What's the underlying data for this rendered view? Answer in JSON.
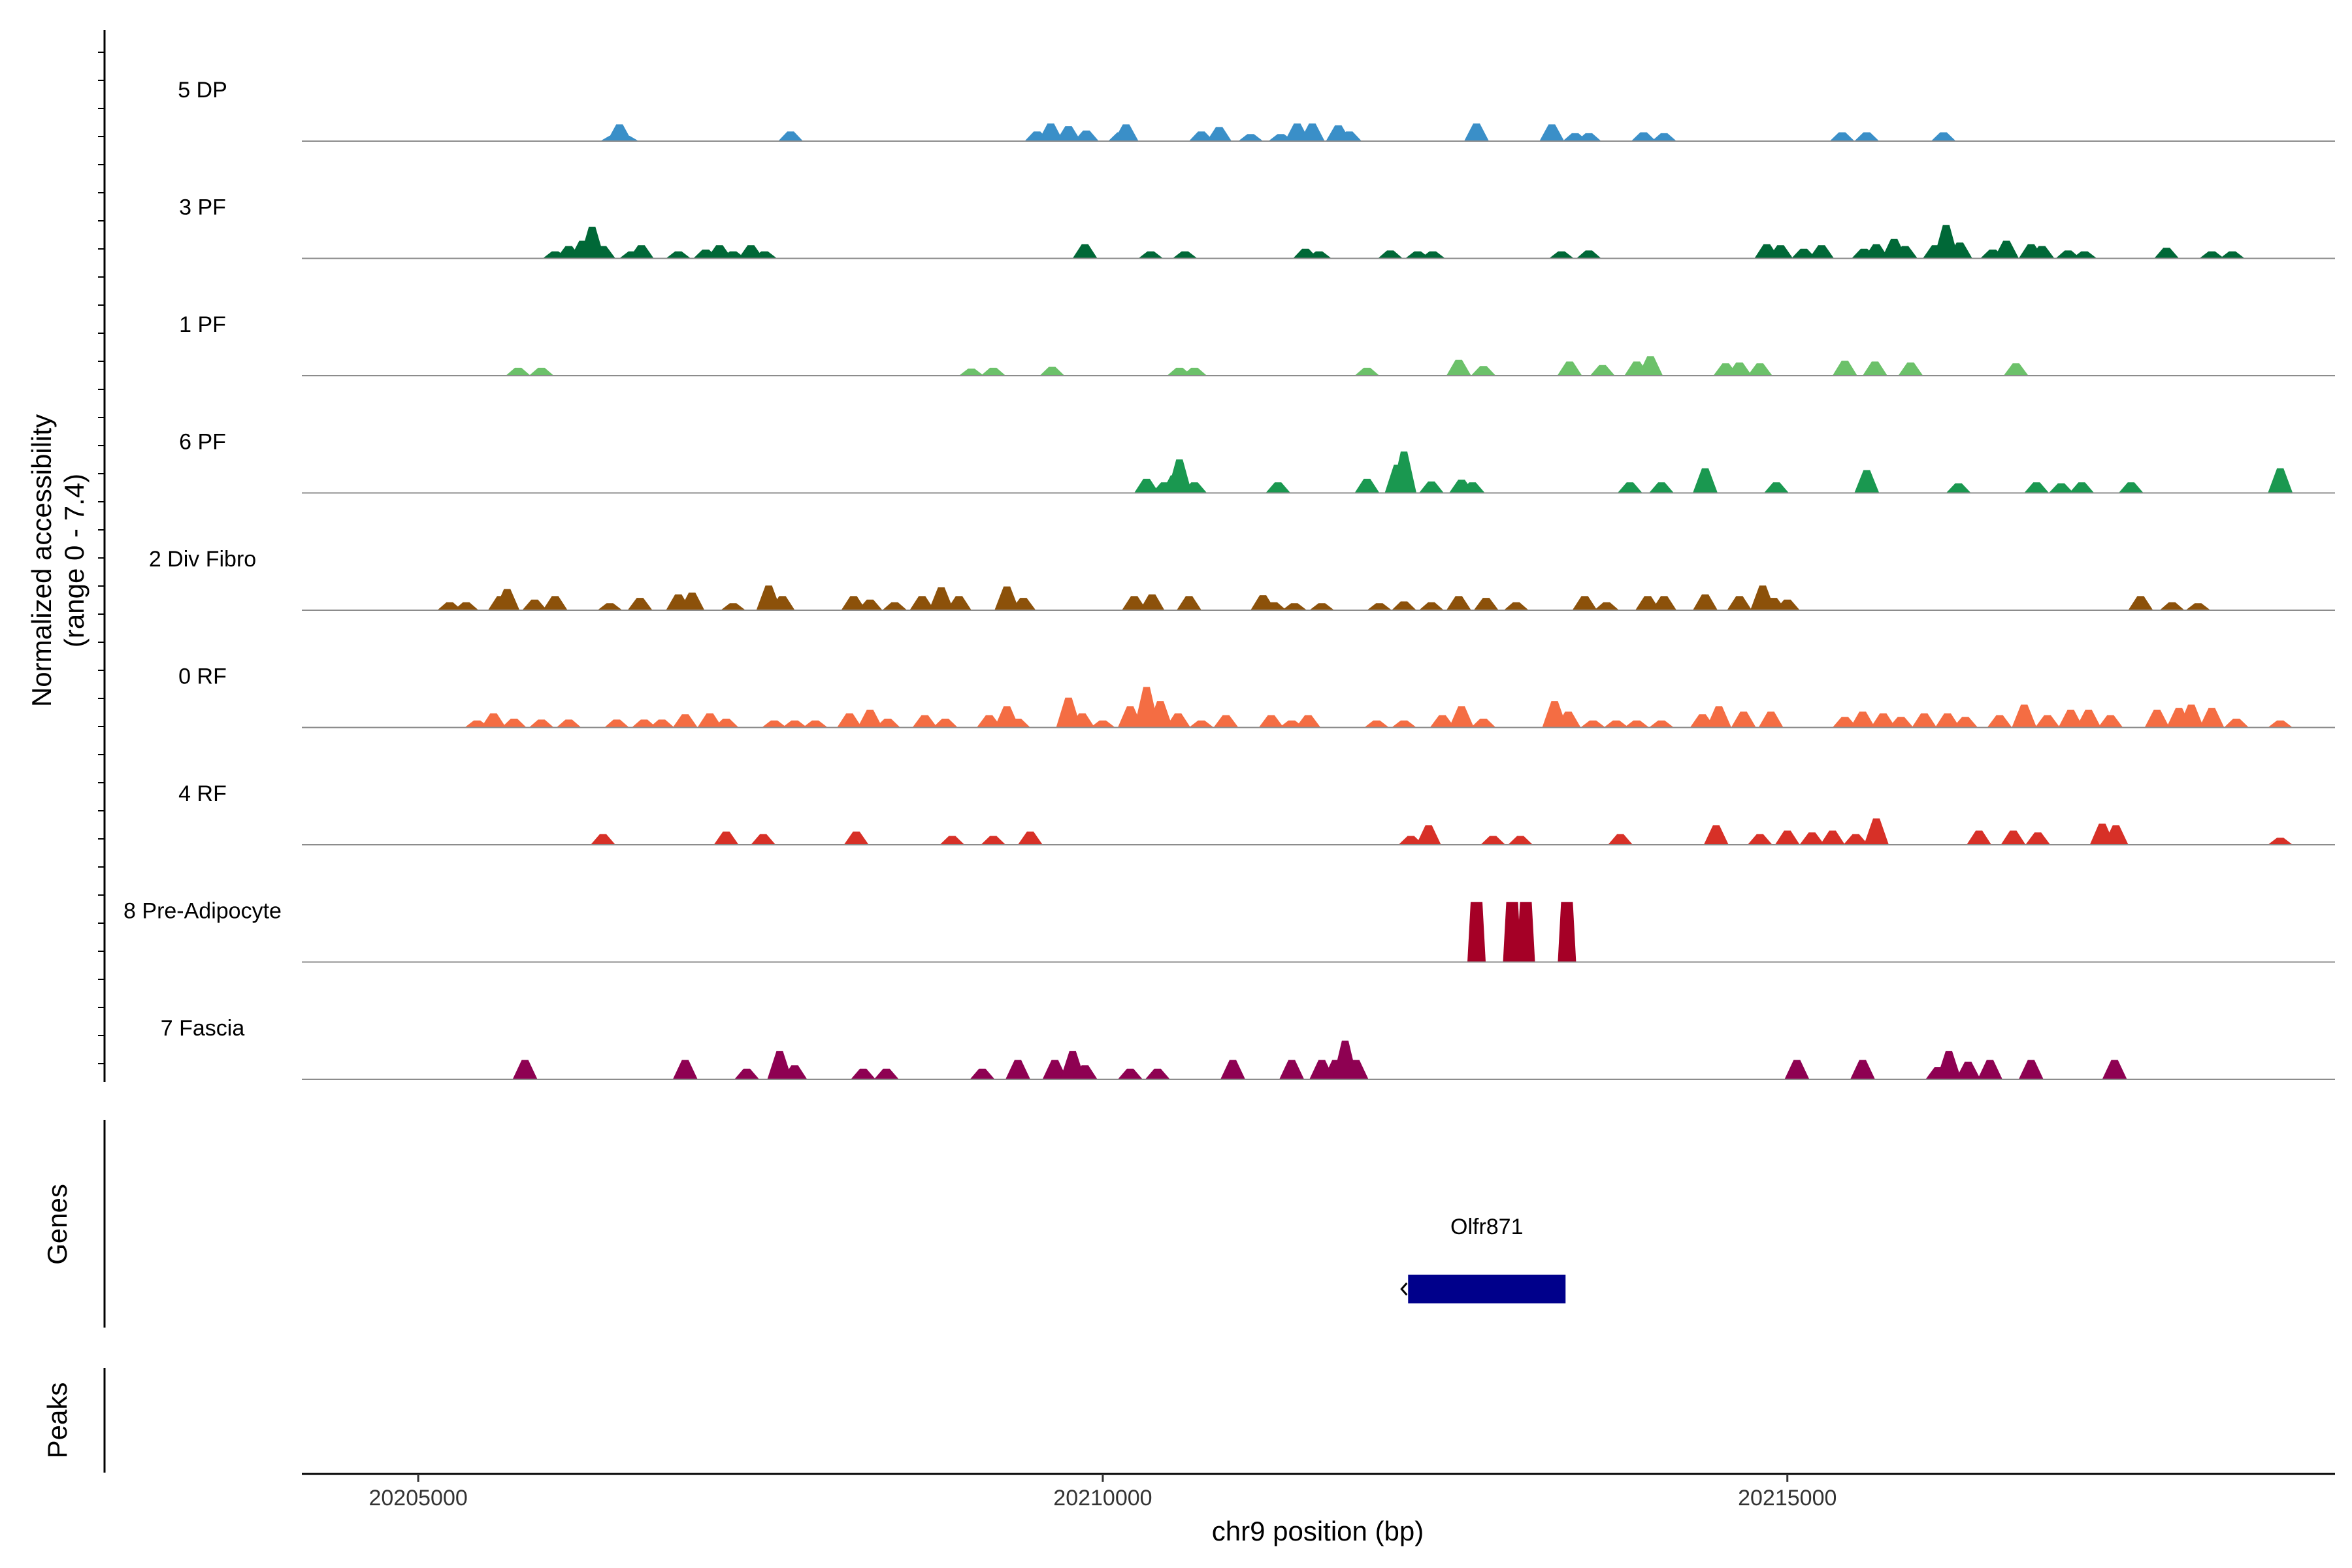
{
  "chart_data": {
    "type": "area",
    "title": "",
    "ylabel_lines": [
      "Normalized accessibility",
      "(range 0 - 7.4)"
    ],
    "y_range": [
      0,
      7.4
    ],
    "xlabel": "chr9 position (bp)",
    "x_range": [
      20204150,
      20219000
    ],
    "x_ticks": [
      20205000,
      20210000,
      20215000
    ],
    "x_tick_labels": [
      "20205000",
      "20210000",
      "20215000"
    ],
    "tracks": [
      {
        "name": "5 DP",
        "color": "#3a8fc8",
        "peaks": [
          [
            20206420,
            0.3
          ],
          [
            20206470,
            0.95
          ],
          [
            20206520,
            0.3
          ],
          [
            20207720,
            0.55
          ],
          [
            20209520,
            0.55
          ],
          [
            20209620,
            1.0
          ],
          [
            20209750,
            0.85
          ],
          [
            20209880,
            0.6
          ],
          [
            20210130,
            0.5
          ],
          [
            20210170,
            0.95
          ],
          [
            20210720,
            0.55
          ],
          [
            20210850,
            0.8
          ],
          [
            20211080,
            0.4
          ],
          [
            20211300,
            0.4
          ],
          [
            20211420,
            1.0
          ],
          [
            20211530,
            1.0
          ],
          [
            20211720,
            0.9
          ],
          [
            20211800,
            0.55
          ],
          [
            20212730,
            1.0
          ],
          [
            20213280,
            0.95
          ],
          [
            20213450,
            0.45
          ],
          [
            20213550,
            0.45
          ],
          [
            20213950,
            0.5
          ],
          [
            20214100,
            0.45
          ],
          [
            20215400,
            0.5
          ],
          [
            20215580,
            0.5
          ],
          [
            20216140,
            0.5
          ]
        ]
      },
      {
        "name": "3 PF",
        "color": "#006837",
        "peaks": [
          [
            20206000,
            0.4
          ],
          [
            20206100,
            0.7
          ],
          [
            20206200,
            1.0
          ],
          [
            20206270,
            1.8
          ],
          [
            20206350,
            0.7
          ],
          [
            20206560,
            0.4
          ],
          [
            20206630,
            0.75
          ],
          [
            20206900,
            0.4
          ],
          [
            20207100,
            0.5
          ],
          [
            20207200,
            0.75
          ],
          [
            20207300,
            0.4
          ],
          [
            20207430,
            0.75
          ],
          [
            20207530,
            0.4
          ],
          [
            20209870,
            0.8
          ],
          [
            20210350,
            0.4
          ],
          [
            20210600,
            0.4
          ],
          [
            20211480,
            0.55
          ],
          [
            20211580,
            0.4
          ],
          [
            20212100,
            0.45
          ],
          [
            20212300,
            0.4
          ],
          [
            20212410,
            0.4
          ],
          [
            20213350,
            0.4
          ],
          [
            20213550,
            0.45
          ],
          [
            20214850,
            0.8
          ],
          [
            20214950,
            0.75
          ],
          [
            20215120,
            0.55
          ],
          [
            20215250,
            0.75
          ],
          [
            20215560,
            0.55
          ],
          [
            20215650,
            0.8
          ],
          [
            20215780,
            1.1
          ],
          [
            20215860,
            0.7
          ],
          [
            20216080,
            0.75
          ],
          [
            20216160,
            1.9
          ],
          [
            20216260,
            0.9
          ],
          [
            20216500,
            0.5
          ],
          [
            20216600,
            1.0
          ],
          [
            20216780,
            0.8
          ],
          [
            20216860,
            0.7
          ],
          [
            20217050,
            0.45
          ],
          [
            20217170,
            0.4
          ],
          [
            20217770,
            0.6
          ],
          [
            20218100,
            0.4
          ],
          [
            20218250,
            0.4
          ]
        ]
      },
      {
        "name": "1 PF",
        "color": "#6cc16a",
        "peaks": [
          [
            20205730,
            0.45
          ],
          [
            20205900,
            0.45
          ],
          [
            20209040,
            0.4
          ],
          [
            20209200,
            0.45
          ],
          [
            20209630,
            0.5
          ],
          [
            20210560,
            0.45
          ],
          [
            20210670,
            0.45
          ],
          [
            20211930,
            0.45
          ],
          [
            20212600,
            0.9
          ],
          [
            20212780,
            0.55
          ],
          [
            20213410,
            0.8
          ],
          [
            20213650,
            0.6
          ],
          [
            20213900,
            0.8
          ],
          [
            20214000,
            1.1
          ],
          [
            20214550,
            0.7
          ],
          [
            20214650,
            0.75
          ],
          [
            20214800,
            0.7
          ],
          [
            20215420,
            0.85
          ],
          [
            20215640,
            0.8
          ],
          [
            20215900,
            0.75
          ],
          [
            20216670,
            0.7
          ]
        ]
      },
      {
        "name": "6 PF",
        "color": "#1a9850",
        "peaks": [
          [
            20210320,
            0.8
          ],
          [
            20210450,
            0.6
          ],
          [
            20210520,
            1.0
          ],
          [
            20210560,
            1.9
          ],
          [
            20210670,
            0.6
          ],
          [
            20211280,
            0.6
          ],
          [
            20211930,
            0.8
          ],
          [
            20212150,
            1.6
          ],
          [
            20212200,
            2.35
          ],
          [
            20212400,
            0.65
          ],
          [
            20212620,
            0.75
          ],
          [
            20212700,
            0.6
          ],
          [
            20213850,
            0.6
          ],
          [
            20214080,
            0.6
          ],
          [
            20214400,
            1.4
          ],
          [
            20214920,
            0.6
          ],
          [
            20215580,
            1.3
          ],
          [
            20216250,
            0.55
          ],
          [
            20216820,
            0.6
          ],
          [
            20217000,
            0.55
          ],
          [
            20217150,
            0.6
          ],
          [
            20217510,
            0.6
          ],
          [
            20218600,
            1.4
          ]
        ]
      },
      {
        "name": "2 Div Fibro",
        "color": "#8c510a",
        "peaks": [
          [
            20205230,
            0.45
          ],
          [
            20205350,
            0.45
          ],
          [
            20205600,
            0.8
          ],
          [
            20205650,
            1.2
          ],
          [
            20205850,
            0.6
          ],
          [
            20206000,
            0.8
          ],
          [
            20206400,
            0.4
          ],
          [
            20206620,
            0.7
          ],
          [
            20206900,
            0.9
          ],
          [
            20207000,
            1.0
          ],
          [
            20207300,
            0.4
          ],
          [
            20207560,
            1.4
          ],
          [
            20207660,
            0.8
          ],
          [
            20208180,
            0.8
          ],
          [
            20208300,
            0.6
          ],
          [
            20208480,
            0.45
          ],
          [
            20208680,
            0.8
          ],
          [
            20208820,
            1.3
          ],
          [
            20208950,
            0.8
          ],
          [
            20209300,
            1.35
          ],
          [
            20209420,
            0.7
          ],
          [
            20210230,
            0.8
          ],
          [
            20210360,
            0.9
          ],
          [
            20210630,
            0.8
          ],
          [
            20211170,
            0.85
          ],
          [
            20211250,
            0.45
          ],
          [
            20211400,
            0.4
          ],
          [
            20211600,
            0.4
          ],
          [
            20212020,
            0.4
          ],
          [
            20212200,
            0.5
          ],
          [
            20212400,
            0.45
          ],
          [
            20212600,
            0.8
          ],
          [
            20212800,
            0.7
          ],
          [
            20213020,
            0.45
          ],
          [
            20213520,
            0.8
          ],
          [
            20213680,
            0.45
          ],
          [
            20213980,
            0.8
          ],
          [
            20214100,
            0.8
          ],
          [
            20214400,
            0.9
          ],
          [
            20214650,
            0.8
          ],
          [
            20214820,
            1.4
          ],
          [
            20214900,
            0.7
          ],
          [
            20215000,
            0.6
          ],
          [
            20217580,
            0.8
          ],
          [
            20217810,
            0.45
          ],
          [
            20218000,
            0.4
          ]
        ]
      },
      {
        "name": "0 RF",
        "color": "#f46d43",
        "peaks": [
          [
            20205430,
            0.4
          ],
          [
            20205550,
            0.8
          ],
          [
            20205700,
            0.5
          ],
          [
            20205900,
            0.45
          ],
          [
            20206100,
            0.45
          ],
          [
            20206450,
            0.45
          ],
          [
            20206650,
            0.45
          ],
          [
            20206780,
            0.45
          ],
          [
            20206950,
            0.75
          ],
          [
            20207130,
            0.8
          ],
          [
            20207250,
            0.5
          ],
          [
            20207600,
            0.4
          ],
          [
            20207750,
            0.4
          ],
          [
            20207900,
            0.4
          ],
          [
            20208150,
            0.8
          ],
          [
            20208300,
            1.0
          ],
          [
            20208430,
            0.5
          ],
          [
            20208700,
            0.7
          ],
          [
            20208850,
            0.5
          ],
          [
            20209170,
            0.7
          ],
          [
            20209300,
            1.2
          ],
          [
            20209380,
            0.5
          ],
          [
            20209750,
            1.7
          ],
          [
            20209850,
            0.8
          ],
          [
            20210000,
            0.4
          ],
          [
            20210200,
            1.2
          ],
          [
            20210320,
            2.3
          ],
          [
            20210420,
            1.5
          ],
          [
            20210550,
            0.8
          ],
          [
            20210720,
            0.4
          ],
          [
            20210900,
            0.7
          ],
          [
            20211230,
            0.7
          ],
          [
            20211380,
            0.4
          ],
          [
            20211500,
            0.7
          ],
          [
            20212000,
            0.4
          ],
          [
            20212200,
            0.4
          ],
          [
            20212480,
            0.7
          ],
          [
            20212620,
            1.2
          ],
          [
            20212780,
            0.5
          ],
          [
            20213300,
            1.5
          ],
          [
            20213400,
            0.9
          ],
          [
            20213580,
            0.4
          ],
          [
            20213750,
            0.4
          ],
          [
            20213900,
            0.4
          ],
          [
            20214080,
            0.4
          ],
          [
            20214380,
            0.75
          ],
          [
            20214500,
            1.2
          ],
          [
            20214680,
            0.9
          ],
          [
            20214880,
            0.9
          ],
          [
            20215420,
            0.6
          ],
          [
            20215550,
            0.9
          ],
          [
            20215700,
            0.8
          ],
          [
            20215830,
            0.6
          ],
          [
            20216000,
            0.8
          ],
          [
            20216170,
            0.8
          ],
          [
            20216300,
            0.6
          ],
          [
            20216550,
            0.7
          ],
          [
            20216730,
            1.3
          ],
          [
            20216900,
            0.7
          ],
          [
            20217070,
            1.0
          ],
          [
            20217200,
            1.0
          ],
          [
            20217360,
            0.7
          ],
          [
            20217700,
            1.0
          ],
          [
            20217860,
            1.1
          ],
          [
            20217950,
            1.3
          ],
          [
            20218100,
            1.1
          ],
          [
            20218280,
            0.5
          ],
          [
            20218600,
            0.4
          ]
        ]
      },
      {
        "name": "4 RF",
        "color": "#d73027",
        "peaks": [
          [
            20206350,
            0.6
          ],
          [
            20207250,
            0.75
          ],
          [
            20207520,
            0.6
          ],
          [
            20208200,
            0.75
          ],
          [
            20208900,
            0.5
          ],
          [
            20209200,
            0.5
          ],
          [
            20209470,
            0.75
          ],
          [
            20212250,
            0.5
          ],
          [
            20212380,
            1.1
          ],
          [
            20212850,
            0.5
          ],
          [
            20213050,
            0.5
          ],
          [
            20213780,
            0.6
          ],
          [
            20214480,
            1.1
          ],
          [
            20214800,
            0.6
          ],
          [
            20215000,
            0.8
          ],
          [
            20215180,
            0.7
          ],
          [
            20215330,
            0.8
          ],
          [
            20215500,
            0.6
          ],
          [
            20215650,
            1.5
          ],
          [
            20216400,
            0.8
          ],
          [
            20216650,
            0.8
          ],
          [
            20216830,
            0.7
          ],
          [
            20217300,
            1.2
          ],
          [
            20217400,
            1.1
          ],
          [
            20218600,
            0.4
          ]
        ]
      },
      {
        "name": "8 Pre-Adipocyte",
        "color": "#a50026",
        "peaks": [
          [
            20212730,
            3.4
          ],
          [
            20212990,
            3.4
          ],
          [
            20213090,
            3.4
          ],
          [
            20213390,
            3.4
          ]
        ]
      },
      {
        "name": "7 Fascia",
        "color": "#8e0152",
        "peaks": [
          [
            20205780,
            1.1
          ],
          [
            20206950,
            1.1
          ],
          [
            20207400,
            0.6
          ],
          [
            20207640,
            1.6
          ],
          [
            20207750,
            0.8
          ],
          [
            20208250,
            0.6
          ],
          [
            20208420,
            0.6
          ],
          [
            20209120,
            0.6
          ],
          [
            20209380,
            1.1
          ],
          [
            20209650,
            1.1
          ],
          [
            20209780,
            1.6
          ],
          [
            20209870,
            0.8
          ],
          [
            20210200,
            0.6
          ],
          [
            20210400,
            0.6
          ],
          [
            20210950,
            1.1
          ],
          [
            20211380,
            1.1
          ],
          [
            20211600,
            1.1
          ],
          [
            20211700,
            1.1
          ],
          [
            20211770,
            2.2
          ],
          [
            20211850,
            1.1
          ],
          [
            20215070,
            1.1
          ],
          [
            20215550,
            1.1
          ],
          [
            20216100,
            0.7
          ],
          [
            20216180,
            1.6
          ],
          [
            20216320,
            1.0
          ],
          [
            20216480,
            1.1
          ],
          [
            20216780,
            1.1
          ],
          [
            20217390,
            1.1
          ]
        ]
      }
    ],
    "genes": [
      {
        "name": "Olfr871",
        "start": 20212230,
        "end": 20213380,
        "strand": "-",
        "color": "#00008b"
      }
    ],
    "panel_labels": {
      "genes": "Genes",
      "peaks": "Peaks"
    }
  }
}
